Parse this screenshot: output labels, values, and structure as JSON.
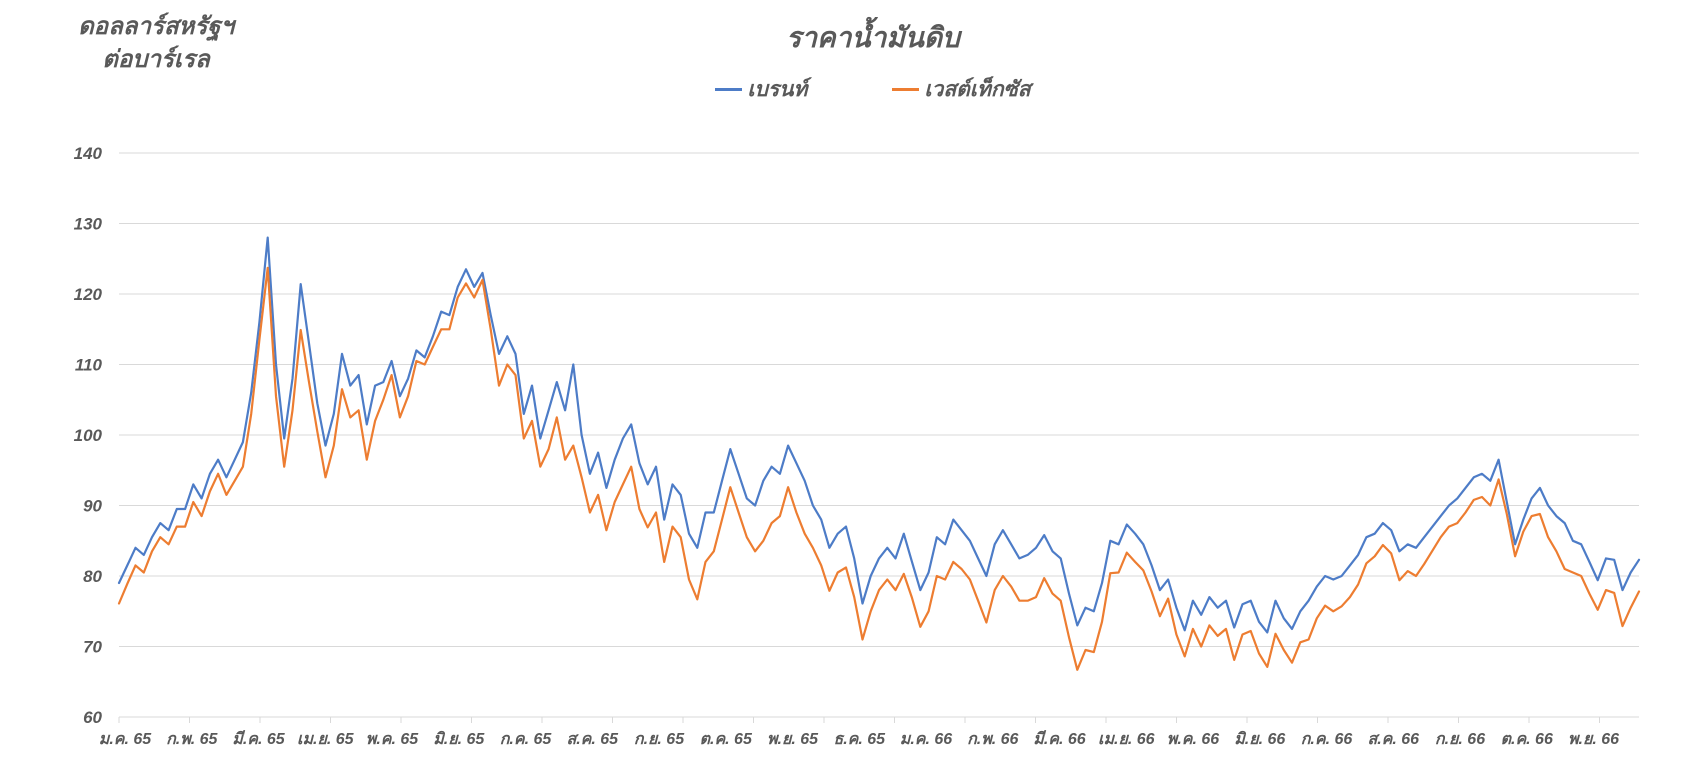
{
  "chart_header": {
    "title": "ราคาน้ำมันดิบ",
    "y_axis_title_line1": "ดอลลาร์สหรัฐฯ",
    "y_axis_title_line2": "ต่อบาร์เรล"
  },
  "legend": {
    "items": [
      {
        "label": "เบรนท์",
        "color": "#4D7CC7"
      },
      {
        "label": "เวสต์เท็กซัส",
        "color": "#ED7D31"
      }
    ]
  },
  "colors": {
    "brent_line": "#4D7CC7",
    "wti_line": "#ED7D31",
    "gridline": "#D9D9D9",
    "axis_text": "#595959"
  },
  "chart_data": {
    "type": "line",
    "title": "ราคาน้ำมันดิบ",
    "ylabel": "ดอลลาร์สหรัฐฯ ต่อบาร์เรล",
    "ylim": [
      60,
      140
    ],
    "yticks": [
      60,
      70,
      80,
      90,
      100,
      110,
      120,
      130,
      140
    ],
    "grid": true,
    "legend_position": "top",
    "x_tick_labels": [
      "ม.ค. 65",
      "ก.พ. 65",
      "มี.ค. 65",
      "เม.ย. 65",
      "พ.ค. 65",
      "มิ.ย. 65",
      "ก.ค. 65",
      "ส.ค. 65",
      "ก.ย. 65",
      "ต.ค. 65",
      "พ.ย. 65",
      "ธ.ค. 65",
      "ม.ค. 66",
      "ก.พ. 66",
      "มี.ค. 66",
      "เม.ย. 66",
      "พ.ค. 66",
      "มิ.ย. 66",
      "ก.ค. 66",
      "ส.ค. 66",
      "ก.ย. 66",
      "ต.ค. 66",
      "พ.ย. 66"
    ],
    "series": [
      {
        "name": "เบรนท์",
        "color": "#4D7CC7",
        "values": [
          79.0,
          81.5,
          84.0,
          83.0,
          85.5,
          87.5,
          86.5,
          89.5,
          89.5,
          93.0,
          91.0,
          94.5,
          96.5,
          94.0,
          96.5,
          99.0,
          106.0,
          116.0,
          128.0,
          110.0,
          99.5,
          108.0,
          121.4,
          113.0,
          104.5,
          98.5,
          103.0,
          111.5,
          107.0,
          108.5,
          101.5,
          107.0,
          107.5,
          110.5,
          105.5,
          108.0,
          112.0,
          111.0,
          114.0,
          117.5,
          117.0,
          121.0,
          123.5,
          121.0,
          123.0,
          117.0,
          111.5,
          114.0,
          111.5,
          103.0,
          107.0,
          99.5,
          103.5,
          107.5,
          103.5,
          110.0,
          100.0,
          94.5,
          97.5,
          92.5,
          96.5,
          99.5,
          101.5,
          96.0,
          93.0,
          95.5,
          88.0,
          93.0,
          91.5,
          86.0,
          84.0,
          89.0,
          89.0,
          93.5,
          98.0,
          94.5,
          91.0,
          90.0,
          93.5,
          95.5,
          94.5,
          98.5,
          96.0,
          93.5,
          90.0,
          88.0,
          84.0,
          86.0,
          87.0,
          82.5,
          76.1,
          80.0,
          82.5,
          84.0,
          82.5,
          86.0,
          82.0,
          78.0,
          80.5,
          85.5,
          84.5,
          88.0,
          86.5,
          85.0,
          82.5,
          80.0,
          84.5,
          86.5,
          84.5,
          82.5,
          83.0,
          84.0,
          85.8,
          83.5,
          82.5,
          77.5,
          73.0,
          75.5,
          75.0,
          79.0,
          85.0,
          84.5,
          87.3,
          86.0,
          84.5,
          81.5,
          78.0,
          79.5,
          75.5,
          72.3,
          76.5,
          74.5,
          77.0,
          75.5,
          76.5,
          72.7,
          76.0,
          76.5,
          73.5,
          72.0,
          76.5,
          74.0,
          72.5,
          75.0,
          76.5,
          78.5,
          80.0,
          79.5,
          80.0,
          81.5,
          83.0,
          85.5,
          86.0,
          87.5,
          86.5,
          83.5,
          84.5,
          84.0,
          85.5,
          87.0,
          88.5,
          90.0,
          91.0,
          92.5,
          94.0,
          94.5,
          93.5,
          96.5,
          90.5,
          84.5,
          88.0,
          91.0,
          92.5,
          90.0,
          88.5,
          87.5,
          85.0,
          84.5,
          82.0,
          79.4,
          82.5,
          82.3,
          78.0,
          80.5,
          82.3
        ]
      },
      {
        "name": "เวสต์เท็กซัส",
        "color": "#ED7D31",
        "values": [
          76.1,
          78.9,
          81.5,
          80.5,
          83.5,
          85.5,
          84.5,
          87.0,
          87.0,
          90.5,
          88.5,
          92.0,
          94.5,
          91.5,
          93.5,
          95.5,
          103.0,
          113.5,
          123.7,
          105.5,
          95.5,
          103.5,
          114.9,
          107.5,
          100.5,
          94.0,
          98.5,
          106.5,
          102.5,
          103.5,
          96.5,
          102.0,
          105.0,
          108.5,
          102.5,
          105.5,
          110.5,
          110.0,
          112.5,
          115.0,
          115.0,
          119.5,
          121.5,
          119.5,
          122.0,
          115.0,
          107.0,
          110.0,
          108.5,
          99.5,
          102.0,
          95.5,
          98.0,
          102.5,
          96.5,
          98.5,
          94.0,
          89.0,
          91.5,
          86.5,
          90.5,
          93.0,
          95.5,
          89.5,
          86.9,
          89.0,
          82.0,
          87.0,
          85.5,
          79.5,
          76.7,
          82.0,
          83.5,
          88.0,
          92.6,
          89.0,
          85.5,
          83.5,
          85.0,
          87.5,
          88.5,
          92.6,
          89.0,
          86.0,
          84.0,
          81.5,
          77.9,
          80.5,
          81.2,
          77.0,
          71.0,
          75.0,
          78.0,
          79.5,
          78.0,
          80.3,
          76.9,
          72.8,
          75.0,
          80.0,
          79.5,
          82.0,
          81.0,
          79.5,
          76.5,
          73.4,
          78.0,
          80.0,
          78.5,
          76.5,
          76.5,
          77.0,
          79.7,
          77.5,
          76.5,
          71.3,
          66.7,
          69.5,
          69.2,
          73.5,
          80.4,
          80.5,
          83.3,
          82.0,
          80.8,
          77.8,
          74.3,
          76.8,
          71.7,
          68.6,
          72.5,
          70.0,
          73.0,
          71.5,
          72.5,
          68.1,
          71.7,
          72.2,
          69.0,
          67.1,
          71.8,
          69.5,
          67.7,
          70.6,
          71.0,
          74.0,
          75.8,
          75.0,
          75.7,
          77.0,
          78.8,
          81.8,
          82.8,
          84.4,
          83.2,
          79.4,
          80.7,
          80.0,
          81.7,
          83.6,
          85.5,
          87.0,
          87.5,
          89.0,
          90.8,
          91.2,
          90.0,
          93.7,
          88.8,
          82.8,
          86.3,
          88.5,
          88.8,
          85.5,
          83.5,
          81.0,
          80.5,
          80.0,
          77.5,
          75.2,
          78.0,
          77.6,
          72.9,
          75.5,
          77.8
        ]
      }
    ]
  }
}
